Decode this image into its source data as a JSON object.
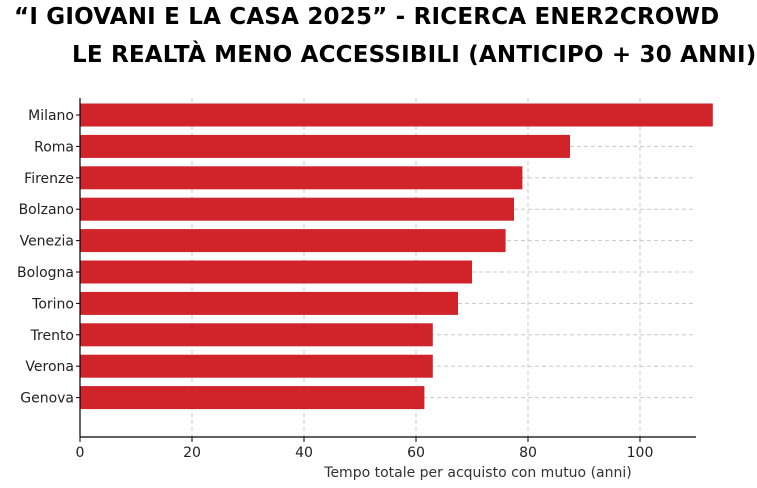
{
  "title_lines": [
    "“I GIOVANI E LA CASA 2025” - RICERCA ENER2CROWD",
    "LE REALTÀ MENO ACCESSIBILI (ANTICIPO + 30 ANNI)"
  ],
  "chart_data": {
    "type": "bar",
    "orientation": "horizontal",
    "categories": [
      "Milano",
      "Roma",
      "Firenze",
      "Bolzano",
      "Venezia",
      "Bologna",
      "Torino",
      "Trento",
      "Verona",
      "Genova"
    ],
    "values": [
      113,
      87.5,
      79,
      77.5,
      76,
      70,
      67.5,
      63,
      63,
      61.5
    ],
    "xlabel": "Tempo totale per acquisto con mutuo (anni)",
    "ylabel": "",
    "xlim": [
      0,
      110
    ],
    "xticks": [
      0,
      20,
      40,
      60,
      80,
      100
    ],
    "grid": true,
    "bar_color": "#d0232a"
  }
}
